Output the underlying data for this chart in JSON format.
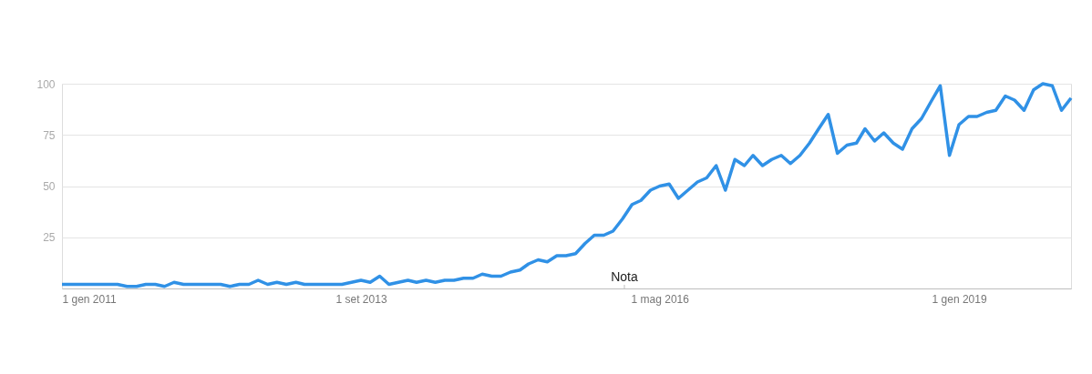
{
  "chart_data": {
    "type": "line",
    "x": [
      "2011-01",
      "2011-02",
      "2011-03",
      "2011-04",
      "2011-05",
      "2011-06",
      "2011-07",
      "2011-08",
      "2011-09",
      "2011-10",
      "2011-11",
      "2011-12",
      "2012-01",
      "2012-02",
      "2012-03",
      "2012-04",
      "2012-05",
      "2012-06",
      "2012-07",
      "2012-08",
      "2012-09",
      "2012-10",
      "2012-11",
      "2012-12",
      "2013-01",
      "2013-02",
      "2013-03",
      "2013-04",
      "2013-05",
      "2013-06",
      "2013-07",
      "2013-08",
      "2013-09",
      "2013-10",
      "2013-11",
      "2013-12",
      "2014-01",
      "2014-02",
      "2014-03",
      "2014-04",
      "2014-05",
      "2014-06",
      "2014-07",
      "2014-08",
      "2014-09",
      "2014-10",
      "2014-11",
      "2014-12",
      "2015-01",
      "2015-02",
      "2015-03",
      "2015-04",
      "2015-05",
      "2015-06",
      "2015-07",
      "2015-08",
      "2015-09",
      "2015-10",
      "2015-11",
      "2015-12",
      "2016-01",
      "2016-02",
      "2016-03",
      "2016-04",
      "2016-05",
      "2016-06",
      "2016-07",
      "2016-08",
      "2016-09",
      "2016-10",
      "2016-11",
      "2016-12",
      "2017-01",
      "2017-02",
      "2017-03",
      "2017-04",
      "2017-05",
      "2017-06",
      "2017-07",
      "2017-08",
      "2017-09",
      "2017-10",
      "2017-11",
      "2017-12",
      "2018-01",
      "2018-02",
      "2018-03",
      "2018-04",
      "2018-05",
      "2018-06",
      "2018-07",
      "2018-08",
      "2018-09",
      "2018-10",
      "2018-11",
      "2018-12",
      "2019-01",
      "2019-02",
      "2019-03",
      "2019-04",
      "2019-05",
      "2019-06",
      "2019-07",
      "2019-08",
      "2019-09",
      "2019-10",
      "2019-11",
      "2019-12",
      "2020-01"
    ],
    "series": [
      {
        "color": "#3091e6",
        "values": [
          2,
          2,
          2,
          2,
          2,
          2,
          2,
          1,
          1,
          2,
          2,
          1,
          3,
          2,
          2,
          2,
          2,
          2,
          1,
          2,
          2,
          4,
          2,
          3,
          2,
          3,
          2,
          2,
          2,
          2,
          2,
          3,
          4,
          3,
          6,
          2,
          3,
          4,
          3,
          4,
          3,
          4,
          4,
          5,
          5,
          7,
          6,
          6,
          8,
          9,
          12,
          14,
          13,
          16,
          16,
          17,
          22,
          26,
          26,
          28,
          34,
          41,
          43,
          48,
          50,
          51,
          44,
          48,
          52,
          54,
          60,
          48,
          63,
          60,
          65,
          60,
          63,
          65,
          61,
          65,
          71,
          78,
          85,
          66,
          70,
          71,
          78,
          72,
          76,
          71,
          68,
          78,
          83,
          91,
          99,
          65,
          80,
          84,
          84,
          86,
          87,
          94,
          92,
          87,
          97,
          100,
          99,
          87,
          93
        ]
      }
    ],
    "xlim": [
      "2011-01",
      "2020-01"
    ],
    "xticks": [
      {
        "value": "2011-01",
        "label": "1 gen 2011"
      },
      {
        "value": "2013-09",
        "label": "1 set 2013"
      },
      {
        "value": "2016-05",
        "label": "1 mag 2016"
      },
      {
        "value": "2019-01",
        "label": "1 gen 2019"
      }
    ],
    "ylim": [
      0,
      100
    ],
    "yticks": [
      25,
      50,
      75,
      100
    ],
    "grid": "y",
    "annotations": [
      "Nota"
    ]
  }
}
